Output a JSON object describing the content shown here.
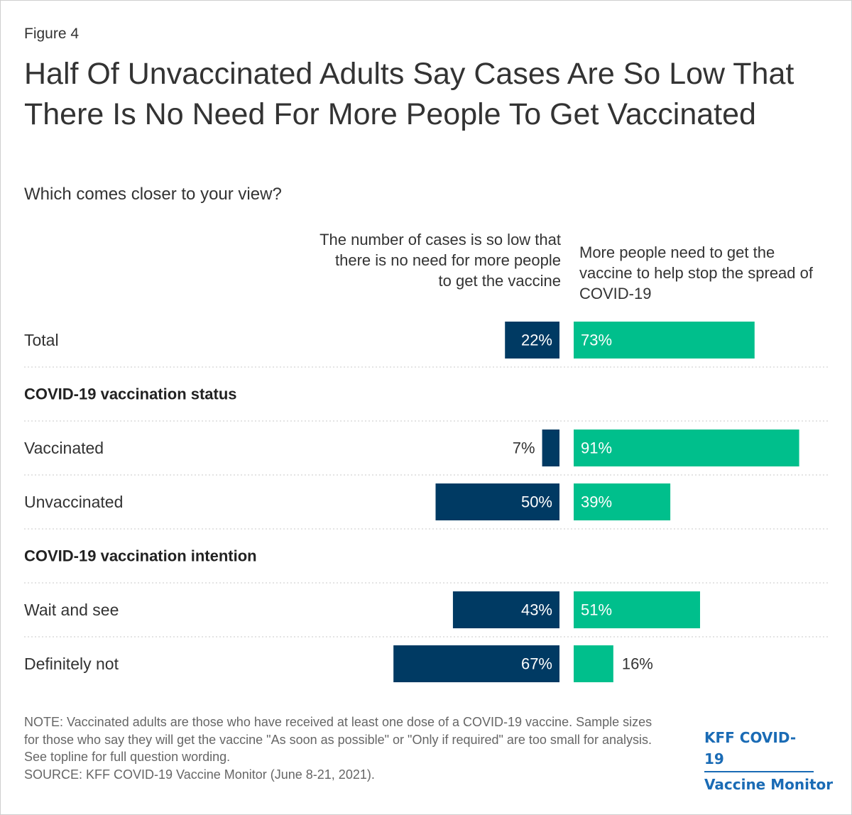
{
  "figure_label": "Figure 4",
  "title": "Half Of Unvaccinated Adults Say Cases Are So Low That There Is No Need For More People To Get Vaccinated",
  "subtitle": "Which comes closer to your view?",
  "note": "NOTE: Vaccinated adults are those who have received at least one dose of a COVID-19 vaccine. Sample sizes for those who say they will get the vaccine \"As soon as possible\" or \"Only if required\" are too small for analysis. See topline for full question wording.",
  "source": "SOURCE: KFF COVID-19 Vaccine Monitor (June 8-21, 2021).",
  "logo": {
    "line1": "KFF COVID-19",
    "line2": "Vaccine Monitor"
  },
  "colors": {
    "left_series": "#003a63",
    "right_series": "#00bf8c",
    "text": "#333333",
    "divider": "#c8c8c8"
  },
  "chart_data": {
    "type": "bar",
    "orientation": "horizontal-diverging",
    "title": "Half Of Unvaccinated Adults Say Cases Are So Low That There Is No Need For More People To Get Vaccinated",
    "subtitle": "Which comes closer to your view?",
    "unit": "%",
    "series": [
      {
        "name": "The number of cases is so low that there is no need for more people to get the vaccine",
        "key": "left"
      },
      {
        "name": "More people need to get the vaccine to help stop the spread of COVID-19",
        "key": "right"
      }
    ],
    "rows": [
      {
        "kind": "bar",
        "label": "Total",
        "left": 22,
        "right": 73
      },
      {
        "kind": "header",
        "label": "COVID-19 vaccination status"
      },
      {
        "kind": "bar",
        "label": "Vaccinated",
        "left": 7,
        "right": 91
      },
      {
        "kind": "bar",
        "label": "Unvaccinated",
        "left": 50,
        "right": 39
      },
      {
        "kind": "header",
        "label": "COVID-19 vaccination intention"
      },
      {
        "kind": "bar",
        "label": "Wait and see",
        "left": 43,
        "right": 51
      },
      {
        "kind": "bar",
        "label": "Definitely not",
        "left": 67,
        "right": 16
      }
    ]
  }
}
